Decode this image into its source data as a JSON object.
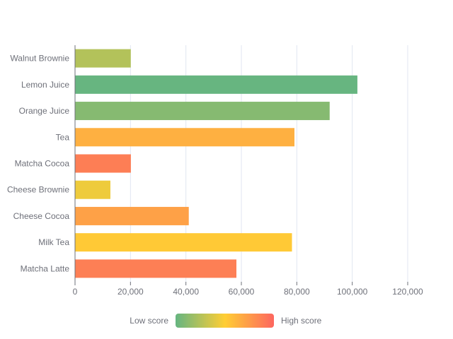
{
  "chart_data": {
    "type": "bar",
    "orientation": "horizontal",
    "title": "",
    "xlabel": "",
    "ylabel": "",
    "xlim": [
      0,
      120000
    ],
    "xticks": [
      0,
      20000,
      40000,
      60000,
      80000,
      100000,
      120000
    ],
    "xtick_labels": [
      "0",
      "20,000",
      "40,000",
      "60,000",
      "80,000",
      "100,000",
      "120,000"
    ],
    "grid": "vertical",
    "categories": [
      "Matcha Latte",
      "Milk Tea",
      "Cheese Cocoa",
      "Cheese Brownie",
      "Matcha Cocoa",
      "Tea",
      "Orange Juice",
      "Lemon Juice",
      "Walnut Brownie"
    ],
    "values": [
      58212,
      78254,
      41032,
      12755,
      20145,
      79146,
      91852,
      101852,
      20112
    ],
    "scores": [
      89.3,
      57.1,
      74.4,
      50.1,
      89.7,
      68.1,
      19.6,
      10.6,
      32.7
    ],
    "visual_map": {
      "min": 10,
      "max": 100,
      "low_label": "Low score",
      "high_label": "High score",
      "colors": [
        "#65B581",
        "#FFCE34",
        "#FD665F"
      ],
      "placement": "bottom-center"
    }
  }
}
